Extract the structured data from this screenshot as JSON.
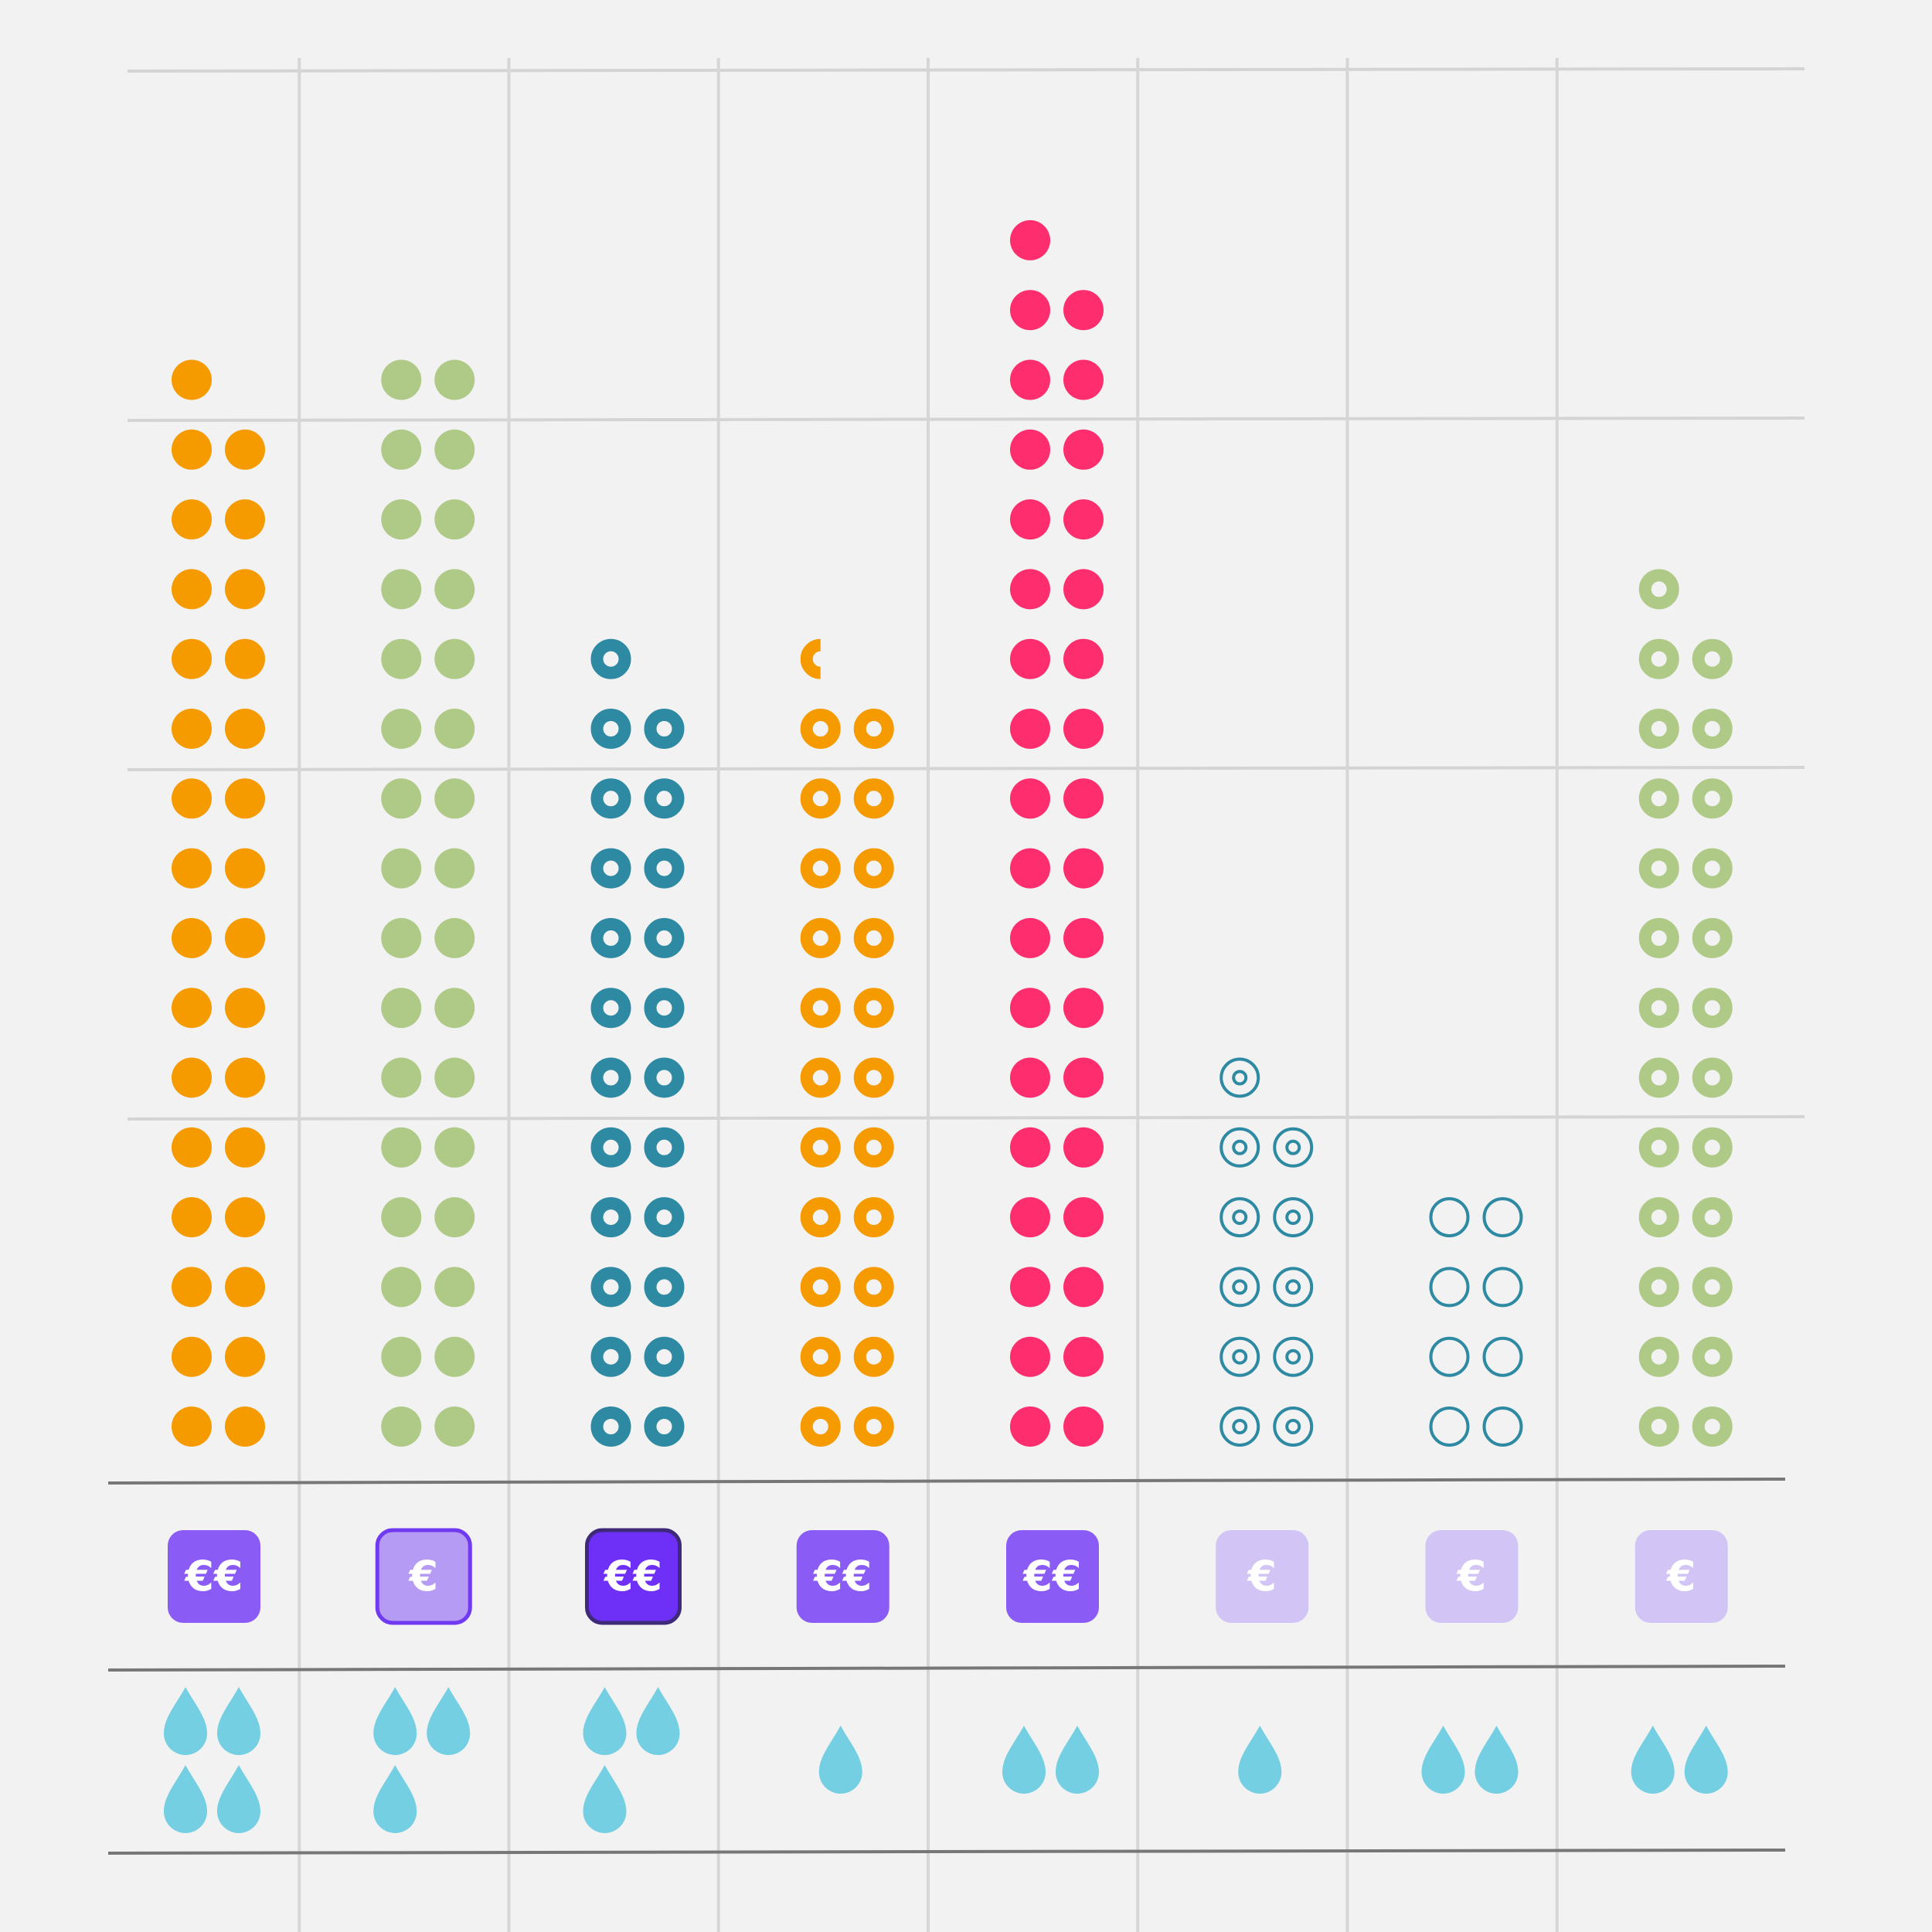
{
  "chart_data": {
    "type": "pictogram-column",
    "title": "",
    "xlabel": "",
    "ylabel": "",
    "ylim": [
      0,
      40
    ],
    "grid": true,
    "legend": "none",
    "categories": [
      "",
      "",
      "",
      "",
      "",
      "",
      "",
      ""
    ],
    "series": [
      {
        "values": [
          31,
          32,
          23,
          22.5,
          35,
          11,
          8,
          25
        ]
      },
      {
        "values": [
          2,
          1,
          2,
          2,
          2,
          1,
          1,
          1
        ]
      },
      {
        "values": [
          4,
          3,
          3,
          1,
          2,
          1,
          2,
          2
        ]
      }
    ],
    "dot_styles": [
      "solid",
      "solid",
      "ring",
      "ring",
      "solid",
      "target",
      "outline",
      "ring"
    ],
    "dot_colors": [
      "#f59b00",
      "#afca87",
      "#2e8aa3",
      "#f59b00",
      "#fe2d6e",
      "#2e8aa3",
      "#2e8aa3",
      "#afca87"
    ],
    "price_icons": [
      {
        "symbol": "€€",
        "fill": "#8a5cf5",
        "border": "none"
      },
      {
        "symbol": "€",
        "fill": "#b59bf3",
        "border": "#6f3af0"
      },
      {
        "symbol": "€€",
        "fill": "#6e2ff6",
        "border": "#3f2a7a"
      },
      {
        "symbol": "€€",
        "fill": "#8a5cf5",
        "border": "none"
      },
      {
        "symbol": "€€",
        "fill": "#8a5cf5",
        "border": "none"
      },
      {
        "symbol": "€",
        "fill": "#d2c5f6",
        "border": "none"
      },
      {
        "symbol": "€",
        "fill": "#d2c5f6",
        "border": "none"
      },
      {
        "symbol": "€",
        "fill": "#d2c5f6",
        "border": "none"
      }
    ],
    "drop_color": "#74cfe2"
  }
}
